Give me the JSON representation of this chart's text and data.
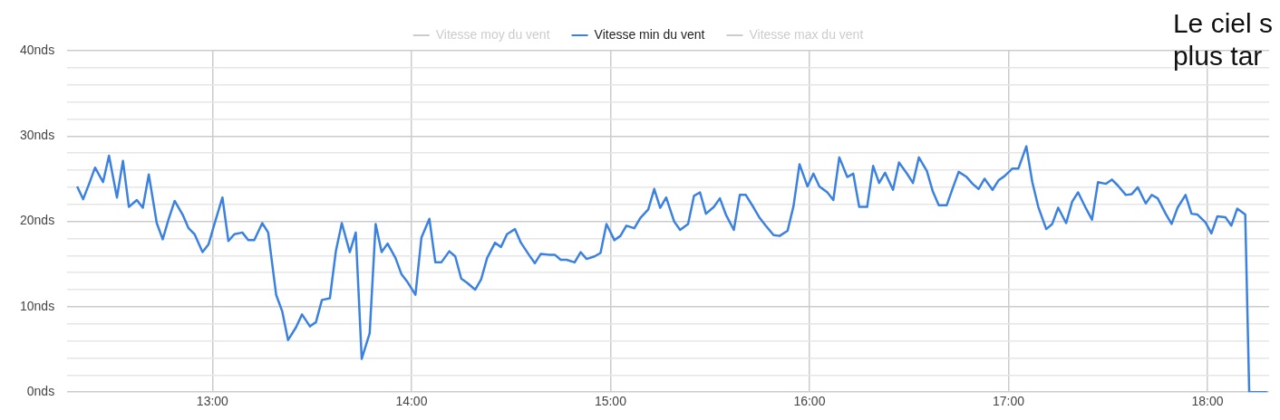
{
  "chart_data": {
    "type": "line",
    "x": [
      12.32,
      12.35,
      12.38,
      12.41,
      12.45,
      12.48,
      12.52,
      12.55,
      12.58,
      12.62,
      12.65,
      12.68,
      12.72,
      12.75,
      12.78,
      12.81,
      12.85,
      12.88,
      12.91,
      12.95,
      12.98,
      13.01,
      13.05,
      13.08,
      13.11,
      13.15,
      13.18,
      13.21,
      13.25,
      13.28,
      13.32,
      13.35,
      13.38,
      13.42,
      13.45,
      13.49,
      13.52,
      13.55,
      13.59,
      13.62,
      13.65,
      13.69,
      13.72,
      13.75,
      13.79,
      13.82,
      13.85,
      13.88,
      13.92,
      13.95,
      13.98,
      14.02,
      14.05,
      14.09,
      14.12,
      14.15,
      14.19,
      14.22,
      14.25,
      14.28,
      14.32,
      14.35,
      14.38,
      14.42,
      14.45,
      14.48,
      14.52,
      14.55,
      14.59,
      14.62,
      14.65,
      14.69,
      14.72,
      14.75,
      14.78,
      14.82,
      14.85,
      14.88,
      14.92,
      14.95,
      14.98,
      15.02,
      15.05,
      15.08,
      15.12,
      15.15,
      15.19,
      15.22,
      15.25,
      15.28,
      15.32,
      15.35,
      15.39,
      15.42,
      15.45,
      15.48,
      15.52,
      15.55,
      15.58,
      15.62,
      15.65,
      15.68,
      15.72,
      15.75,
      15.78,
      15.82,
      15.85,
      15.89,
      15.92,
      15.95,
      15.99,
      16.02,
      16.05,
      16.09,
      16.12,
      16.15,
      16.19,
      16.22,
      16.25,
      16.29,
      16.32,
      16.35,
      16.38,
      16.42,
      16.45,
      16.49,
      16.52,
      16.55,
      16.59,
      16.62,
      16.65,
      16.69,
      16.72,
      16.75,
      16.79,
      16.82,
      16.85,
      16.88,
      16.92,
      16.95,
      16.98,
      17.02,
      17.05,
      17.09,
      17.12,
      17.15,
      17.19,
      17.22,
      17.25,
      17.29,
      17.32,
      17.35,
      17.39,
      17.42,
      17.45,
      17.49,
      17.52,
      17.55,
      17.59,
      17.62,
      17.65,
      17.69,
      17.72,
      17.75,
      17.79,
      17.82,
      17.85,
      17.89,
      17.92,
      17.95,
      17.99,
      18.02,
      18.05,
      18.09,
      18.12,
      18.15,
      18.19,
      18.21,
      18.3
    ],
    "series": [
      {
        "name": "Vitesse moy du vent",
        "color": "#cccccc",
        "values": [
          null,
          null,
          null,
          null,
          null,
          null,
          null,
          null,
          null,
          null,
          null,
          null,
          null,
          null,
          null,
          null,
          null,
          null,
          null,
          null,
          null,
          null,
          null,
          null,
          null,
          null,
          null,
          null,
          null,
          null,
          null,
          null,
          null,
          null,
          null,
          null,
          null,
          null,
          null,
          null,
          null,
          null,
          null,
          null,
          null,
          null,
          null,
          null,
          null,
          null,
          null,
          null,
          null,
          null,
          null,
          null,
          null,
          null,
          null,
          null,
          null,
          null,
          null,
          null,
          null,
          null,
          null,
          null,
          null,
          null,
          null,
          null,
          null,
          null,
          null,
          null,
          null,
          null,
          null,
          null,
          null,
          null,
          null,
          null,
          null,
          null,
          null,
          null,
          null,
          null,
          null,
          null,
          null,
          null,
          null,
          null,
          null,
          null,
          null,
          null,
          null,
          null,
          null,
          null,
          null,
          null,
          null,
          null,
          null,
          null,
          null,
          null,
          null,
          null,
          null,
          null,
          null,
          null,
          null,
          null,
          null,
          null,
          null,
          null,
          null,
          null,
          null,
          null,
          null,
          null,
          null,
          null,
          null,
          null,
          null,
          null,
          null,
          null,
          null,
          null,
          null,
          null,
          null,
          null,
          null,
          null,
          null,
          null,
          null,
          null,
          null,
          null,
          null,
          null,
          null,
          null,
          null,
          null,
          null,
          null,
          null,
          null,
          null,
          null,
          null,
          null,
          null,
          null,
          null,
          null,
          null,
          null,
          null,
          null,
          null,
          null,
          null,
          null,
          null
        ]
      },
      {
        "name": "Vitesse min du vent",
        "color": "#3b82e0",
        "values": [
          24.1,
          22.6,
          24.4,
          26.3,
          24.6,
          27.7,
          22.8,
          27.1,
          21.7,
          22.5,
          21.6,
          25.5,
          19.8,
          17.9,
          20.3,
          22.4,
          20.8,
          19.2,
          18.5,
          16.4,
          17.3,
          19.7,
          22.8,
          17.7,
          18.5,
          18.7,
          17.8,
          17.8,
          19.8,
          18.7,
          11.4,
          9.5,
          6.1,
          7.6,
          9.1,
          7.7,
          8.2,
          10.8,
          11.0,
          16.5,
          19.8,
          16.4,
          18.7,
          3.9,
          6.9,
          19.7,
          16.4,
          17.4,
          15.7,
          13.8,
          12.9,
          11.4,
          18.1,
          20.3,
          15.2,
          15.2,
          16.5,
          15.9,
          13.3,
          12.8,
          12.0,
          13.2,
          15.7,
          17.5,
          17.0,
          18.5,
          19.1,
          17.5,
          16.1,
          15.1,
          16.2,
          16.1,
          16.1,
          15.5,
          15.5,
          15.2,
          16.4,
          15.6,
          15.9,
          16.3,
          19.7,
          17.8,
          18.3,
          19.5,
          19.2,
          20.4,
          21.4,
          23.8,
          21.6,
          22.8,
          20.0,
          19.0,
          19.7,
          23.0,
          23.4,
          20.9,
          21.7,
          22.7,
          20.8,
          19.0,
          23.1,
          23.1,
          21.6,
          20.4,
          19.5,
          18.4,
          18.3,
          18.9,
          21.8,
          26.7,
          24.1,
          25.6,
          24.1,
          23.4,
          22.5,
          27.5,
          25.2,
          25.6,
          21.7,
          21.7,
          26.5,
          24.5,
          25.7,
          23.7,
          26.9,
          25.6,
          24.5,
          27.5,
          25.9,
          23.5,
          21.9,
          21.9,
          23.9,
          25.8,
          25.2,
          24.4,
          23.8,
          25.0,
          23.7,
          24.8,
          25.3,
          26.2,
          26.2,
          28.8,
          24.6,
          21.7,
          19.1,
          19.7,
          21.6,
          19.8,
          22.3,
          23.4,
          21.5,
          20.2,
          24.6,
          24.4,
          24.9,
          24.2,
          23.1,
          23.2,
          24.0,
          22.1,
          23.1,
          22.7,
          20.9,
          19.7,
          21.6,
          23.1,
          20.9,
          20.8,
          19.9,
          18.6,
          20.6,
          20.5,
          19.5,
          21.5,
          20.8,
          0,
          0
        ]
      },
      {
        "name": "Vitesse max du vent",
        "color": "#cccccc",
        "values": [
          null,
          null,
          null,
          null,
          null,
          null,
          null,
          null,
          null,
          null,
          null,
          null,
          null,
          null,
          null,
          null,
          null,
          null,
          null,
          null,
          null,
          null,
          null,
          null,
          null,
          null,
          null,
          null,
          null,
          null,
          null,
          null,
          null,
          null,
          null,
          null,
          null,
          null,
          null,
          null,
          null,
          null,
          null,
          null,
          null,
          null,
          null,
          null,
          null,
          null,
          null,
          null,
          null,
          null,
          null,
          null,
          null,
          null,
          null,
          null,
          null,
          null,
          null,
          null,
          null,
          null,
          null,
          null,
          null,
          null,
          null,
          null,
          null,
          null,
          null,
          null,
          null,
          null,
          null,
          null,
          null,
          null,
          null,
          null,
          null,
          null,
          null,
          null,
          null,
          null,
          null,
          null,
          null,
          null,
          null,
          null,
          null,
          null,
          null,
          null,
          null,
          null,
          null,
          null,
          null,
          null,
          null,
          null,
          null,
          null,
          null,
          null,
          null,
          null,
          null,
          null,
          null,
          null,
          null,
          null,
          null,
          null,
          null,
          null,
          null,
          null,
          null,
          null,
          null,
          null,
          null,
          null,
          null,
          null,
          null,
          null,
          null,
          null,
          null,
          null,
          null,
          null,
          null,
          null,
          null,
          null,
          null,
          null,
          null,
          null,
          null,
          null,
          null,
          null,
          null,
          null,
          null,
          null,
          null,
          null,
          null,
          null,
          null,
          null,
          null,
          null,
          null,
          null,
          null,
          null,
          null,
          null,
          null,
          null,
          null,
          null,
          null,
          null,
          null
        ]
      }
    ],
    "xlim": [
      12.27,
      18.31
    ],
    "xticks": [
      {
        "value": 13,
        "label": "13:00"
      },
      {
        "value": 14,
        "label": "14:00"
      },
      {
        "value": 15,
        "label": "15:00"
      },
      {
        "value": 16,
        "label": "16:00"
      },
      {
        "value": 17,
        "label": "17:00"
      },
      {
        "value": 18,
        "label": "18:00"
      }
    ],
    "ylim": [
      0,
      40
    ],
    "yticks": [
      {
        "value": 0,
        "label": "0nds"
      },
      {
        "value": 2,
        "label": null
      },
      {
        "value": 4,
        "label": null
      },
      {
        "value": 6,
        "label": null
      },
      {
        "value": 8,
        "label": null
      },
      {
        "value": 10,
        "label": "10nds"
      },
      {
        "value": 12,
        "label": null
      },
      {
        "value": 14,
        "label": null
      },
      {
        "value": 16,
        "label": null
      },
      {
        "value": 18,
        "label": null
      },
      {
        "value": 20,
        "label": "20nds"
      },
      {
        "value": 22,
        "label": null
      },
      {
        "value": 24,
        "label": null
      },
      {
        "value": 26,
        "label": null
      },
      {
        "value": 28,
        "label": null
      },
      {
        "value": 30,
        "label": "30nds"
      },
      {
        "value": 32,
        "label": null
      },
      {
        "value": 34,
        "label": null
      },
      {
        "value": 36,
        "label": null
      },
      {
        "value": 38,
        "label": null
      },
      {
        "value": 40,
        "label": "40nds"
      }
    ],
    "grid": true,
    "legend": "top",
    "marker": "none",
    "annotations": [
      "Le ciel s",
      "plus tar"
    ]
  }
}
